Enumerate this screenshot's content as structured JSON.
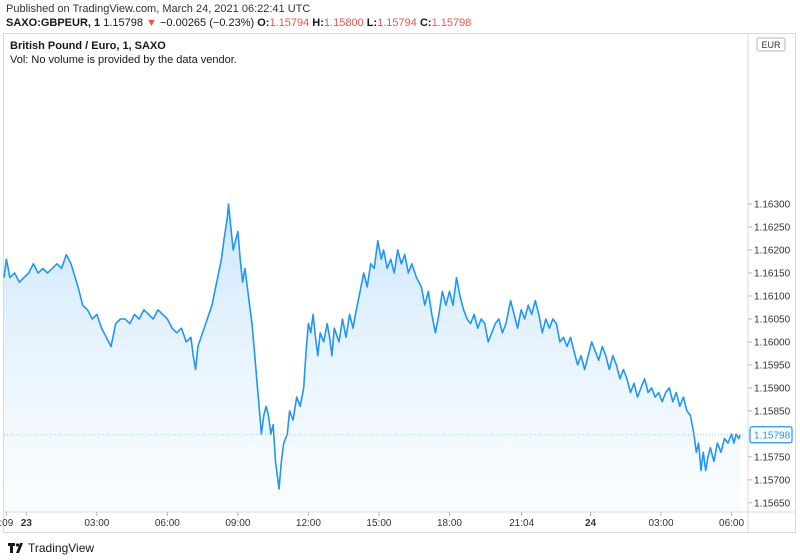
{
  "header": {
    "published": "Published on TradingView.com, March 24, 2021 06:22:41 UTC",
    "symbol": "SAXO:GBPEUR, 1",
    "last_price": "1.15798",
    "change_arrow": "▼",
    "change": "−0.00265 (−0.23%)",
    "open_label": "O:",
    "open": "1.15794",
    "high_label": "H:",
    "high": "1.15800",
    "low_label": "L:",
    "low": "1.15794",
    "close_label": "C:",
    "close": "1.15798"
  },
  "chart_title": "British Pound / Euro, 1, SAXO",
  "volume_note": "Vol: No volume is provided by the data vendor.",
  "currency_badge": "EUR",
  "current_price_tag": "1.15798",
  "footer": {
    "brand": "TradingView",
    "logo_icon": "tradingview-logo-icon"
  },
  "colors": {
    "line": "#2196f3",
    "fill_top": "#bbdefb",
    "negative": "#ef5350",
    "tag_border": "#2196f3"
  },
  "chart_data": {
    "type": "area",
    "ylim": [
      1.1563,
      1.1667
    ],
    "y_ticks": [
      "1.16300",
      "1.16250",
      "1.16200",
      "1.16150",
      "1.16100",
      "1.16050",
      "1.16000",
      "1.15950",
      "1.15900",
      "1.15850",
      "1.15750",
      "1.15700",
      "1.15650"
    ],
    "y_tick_values": [
      1.163,
      1.1625,
      1.162,
      1.1615,
      1.161,
      1.1605,
      1.16,
      1.1595,
      1.159,
      1.1585,
      1.1575,
      1.157,
      1.1565
    ],
    "x_ticks": [
      ":09",
      "23",
      "03:00",
      "06:00",
      "09:00",
      "12:00",
      "15:00",
      "18:00",
      "21:04",
      "24",
      "03:00",
      "06:00"
    ],
    "x_tick_hours": [
      -0.85,
      0,
      3,
      6,
      9,
      12,
      15,
      18,
      21.07,
      24,
      27,
      30
    ],
    "x_bold_ticks": [
      "23",
      "24"
    ],
    "xlim_hours": [
      -0.95,
      30.7
    ],
    "series": [
      {
        "points": [
          [
            -0.95,
            1.1614
          ],
          [
            -0.85,
            1.1618
          ],
          [
            -0.7,
            1.1614
          ],
          [
            -0.5,
            1.1615
          ],
          [
            -0.3,
            1.1613
          ],
          [
            -0.1,
            1.1614
          ],
          [
            0.1,
            1.1615
          ],
          [
            0.3,
            1.1617
          ],
          [
            0.5,
            1.1615
          ],
          [
            0.7,
            1.1616
          ],
          [
            0.9,
            1.1615
          ],
          [
            1.1,
            1.1616
          ],
          [
            1.3,
            1.1617
          ],
          [
            1.5,
            1.1616
          ],
          [
            1.7,
            1.1619
          ],
          [
            1.9,
            1.1617
          ],
          [
            2.2,
            1.1612
          ],
          [
            2.4,
            1.1608
          ],
          [
            2.6,
            1.1607
          ],
          [
            2.8,
            1.1605
          ],
          [
            3.0,
            1.1606
          ],
          [
            3.2,
            1.1603
          ],
          [
            3.4,
            1.1601
          ],
          [
            3.6,
            1.1599
          ],
          [
            3.8,
            1.1604
          ],
          [
            4.0,
            1.1605
          ],
          [
            4.2,
            1.1605
          ],
          [
            4.4,
            1.1604
          ],
          [
            4.6,
            1.1606
          ],
          [
            4.8,
            1.1605
          ],
          [
            5.0,
            1.1607
          ],
          [
            5.2,
            1.1606
          ],
          [
            5.4,
            1.1605
          ],
          [
            5.6,
            1.1607
          ],
          [
            5.8,
            1.1606
          ],
          [
            6.0,
            1.1605
          ],
          [
            6.2,
            1.1603
          ],
          [
            6.4,
            1.1602
          ],
          [
            6.6,
            1.1603
          ],
          [
            6.8,
            1.16
          ],
          [
            7.0,
            1.1601
          ],
          [
            7.1,
            1.1597
          ],
          [
            7.2,
            1.1594
          ],
          [
            7.3,
            1.1599
          ],
          [
            7.5,
            1.1602
          ],
          [
            7.7,
            1.1605
          ],
          [
            7.9,
            1.1608
          ],
          [
            8.1,
            1.1613
          ],
          [
            8.3,
            1.1618
          ],
          [
            8.4,
            1.1622
          ],
          [
            8.55,
            1.1627
          ],
          [
            8.6,
            1.163
          ],
          [
            8.7,
            1.1625
          ],
          [
            8.8,
            1.162
          ],
          [
            8.9,
            1.1622
          ],
          [
            9.0,
            1.1624
          ],
          [
            9.1,
            1.1618
          ],
          [
            9.2,
            1.1613
          ],
          [
            9.3,
            1.1616
          ],
          [
            9.4,
            1.1612
          ],
          [
            9.5,
            1.1608
          ],
          [
            9.6,
            1.1604
          ],
          [
            9.7,
            1.1598
          ],
          [
            9.8,
            1.1592
          ],
          [
            9.9,
            1.1586
          ],
          [
            10.0,
            1.158
          ],
          [
            10.1,
            1.1584
          ],
          [
            10.2,
            1.1586
          ],
          [
            10.3,
            1.1584
          ],
          [
            10.4,
            1.158
          ],
          [
            10.5,
            1.1582
          ],
          [
            10.6,
            1.1574
          ],
          [
            10.7,
            1.157
          ],
          [
            10.75,
            1.1568
          ],
          [
            10.85,
            1.1574
          ],
          [
            10.95,
            1.1578
          ],
          [
            11.1,
            1.158
          ],
          [
            11.2,
            1.1585
          ],
          [
            11.35,
            1.1583
          ],
          [
            11.5,
            1.1588
          ],
          [
            11.65,
            1.1586
          ],
          [
            11.8,
            1.159
          ],
          [
            11.9,
            1.1598
          ],
          [
            12.0,
            1.1604
          ],
          [
            12.1,
            1.1602
          ],
          [
            12.2,
            1.1606
          ],
          [
            12.3,
            1.1601
          ],
          [
            12.4,
            1.1597
          ],
          [
            12.5,
            1.1602
          ],
          [
            12.65,
            1.16
          ],
          [
            12.8,
            1.1604
          ],
          [
            12.9,
            1.1601
          ],
          [
            13.0,
            1.1597
          ],
          [
            13.1,
            1.1603
          ],
          [
            13.3,
            1.16
          ],
          [
            13.45,
            1.1605
          ],
          [
            13.6,
            1.1601
          ],
          [
            13.75,
            1.1606
          ],
          [
            13.9,
            1.1603
          ],
          [
            14.0,
            1.1606
          ],
          [
            14.2,
            1.1611
          ],
          [
            14.35,
            1.1615
          ],
          [
            14.5,
            1.1612
          ],
          [
            14.65,
            1.1617
          ],
          [
            14.8,
            1.1616
          ],
          [
            14.95,
            1.1622
          ],
          [
            15.1,
            1.1618
          ],
          [
            15.2,
            1.162
          ],
          [
            15.35,
            1.1616
          ],
          [
            15.5,
            1.1618
          ],
          [
            15.65,
            1.1615
          ],
          [
            15.8,
            1.162
          ],
          [
            15.95,
            1.1617
          ],
          [
            16.1,
            1.1619
          ],
          [
            16.25,
            1.1615
          ],
          [
            16.4,
            1.1617
          ],
          [
            16.6,
            1.1614
          ],
          [
            16.8,
            1.1612
          ],
          [
            16.95,
            1.1608
          ],
          [
            17.1,
            1.1611
          ],
          [
            17.25,
            1.1606
          ],
          [
            17.4,
            1.1602
          ],
          [
            17.55,
            1.1606
          ],
          [
            17.7,
            1.1611
          ],
          [
            17.85,
            1.1608
          ],
          [
            18.0,
            1.1611
          ],
          [
            18.15,
            1.1608
          ],
          [
            18.3,
            1.1614
          ],
          [
            18.45,
            1.161
          ],
          [
            18.6,
            1.1607
          ],
          [
            18.75,
            1.1605
          ],
          [
            18.9,
            1.1604
          ],
          [
            19.05,
            1.1606
          ],
          [
            19.2,
            1.1603
          ],
          [
            19.35,
            1.1605
          ],
          [
            19.5,
            1.1604
          ],
          [
            19.65,
            1.16
          ],
          [
            19.8,
            1.1602
          ],
          [
            19.95,
            1.1604
          ],
          [
            20.1,
            1.1605
          ],
          [
            20.25,
            1.1602
          ],
          [
            20.4,
            1.1604
          ],
          [
            20.6,
            1.1609
          ],
          [
            20.75,
            1.1606
          ],
          [
            20.9,
            1.1603
          ],
          [
            21.05,
            1.1607
          ],
          [
            21.2,
            1.1605
          ],
          [
            21.35,
            1.1608
          ],
          [
            21.5,
            1.1606
          ],
          [
            21.65,
            1.1609
          ],
          [
            21.8,
            1.1606
          ],
          [
            21.95,
            1.1602
          ],
          [
            22.1,
            1.1605
          ],
          [
            22.25,
            1.1603
          ],
          [
            22.4,
            1.1605
          ],
          [
            22.55,
            1.1604
          ],
          [
            22.7,
            1.16
          ],
          [
            22.85,
            1.1601
          ],
          [
            23.0,
            1.1599
          ],
          [
            23.15,
            1.1601
          ],
          [
            23.3,
            1.1598
          ],
          [
            23.45,
            1.1595
          ],
          [
            23.6,
            1.1597
          ],
          [
            23.75,
            1.1594
          ],
          [
            23.9,
            1.1597
          ],
          [
            24.05,
            1.16
          ],
          [
            24.2,
            1.1598
          ],
          [
            24.35,
            1.1596
          ],
          [
            24.5,
            1.1599
          ],
          [
            24.65,
            1.1597
          ],
          [
            24.8,
            1.1594
          ],
          [
            24.95,
            1.1597
          ],
          [
            25.1,
            1.1595
          ],
          [
            25.25,
            1.1592
          ],
          [
            25.4,
            1.1594
          ],
          [
            25.55,
            1.1592
          ],
          [
            25.7,
            1.1589
          ],
          [
            25.85,
            1.1591
          ],
          [
            26.0,
            1.1588
          ],
          [
            26.15,
            1.159
          ],
          [
            26.3,
            1.1592
          ],
          [
            26.45,
            1.1589
          ],
          [
            26.6,
            1.159
          ],
          [
            26.75,
            1.1588
          ],
          [
            26.9,
            1.1589
          ],
          [
            27.05,
            1.1587
          ],
          [
            27.2,
            1.1589
          ],
          [
            27.35,
            1.159
          ],
          [
            27.5,
            1.1587
          ],
          [
            27.65,
            1.1589
          ],
          [
            27.8,
            1.1586
          ],
          [
            27.95,
            1.1588
          ],
          [
            28.1,
            1.1585
          ],
          [
            28.25,
            1.1584
          ],
          [
            28.4,
            1.158
          ],
          [
            28.5,
            1.1576
          ],
          [
            28.6,
            1.1578
          ],
          [
            28.7,
            1.1572
          ],
          [
            28.8,
            1.1576
          ],
          [
            28.9,
            1.1572
          ],
          [
            29.0,
            1.1575
          ],
          [
            29.1,
            1.1577
          ],
          [
            29.25,
            1.1574
          ],
          [
            29.4,
            1.1578
          ],
          [
            29.55,
            1.1576
          ],
          [
            29.7,
            1.1579
          ],
          [
            29.85,
            1.1578
          ],
          [
            30.0,
            1.158
          ],
          [
            30.1,
            1.1578
          ],
          [
            30.2,
            1.158
          ],
          [
            30.3,
            1.1579
          ],
          [
            30.37,
            1.15798
          ]
        ]
      }
    ]
  }
}
